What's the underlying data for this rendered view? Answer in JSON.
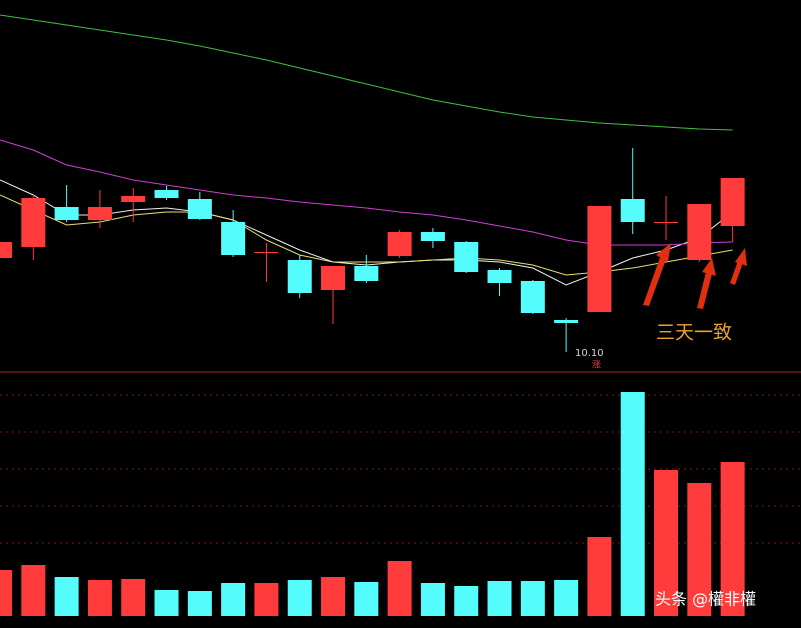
{
  "chart_data": {
    "type": "candlestick",
    "open": [
      11.04,
      11.15,
      11.55,
      11.42,
      11.6,
      11.72,
      11.63,
      11.4,
      11.09,
      11.02,
      10.72,
      10.96,
      11.06,
      11.3,
      11.2,
      10.92,
      10.81,
      10.42,
      10.5,
      11.63,
      11.39,
      11.02,
      11.36
    ],
    "high": [
      11.2,
      11.67,
      11.77,
      11.72,
      11.74,
      11.76,
      11.7,
      11.52,
      11.19,
      11.07,
      10.96,
      11.07,
      11.32,
      11.34,
      11.21,
      10.94,
      10.82,
      10.44,
      11.56,
      12.14,
      11.66,
      11.58,
      11.84
    ],
    "low": [
      11.04,
      11.02,
      11.4,
      11.34,
      11.4,
      11.62,
      11.42,
      11.05,
      10.8,
      10.64,
      10.38,
      10.79,
      11.04,
      11.14,
      10.89,
      10.66,
      10.48,
      10.1,
      10.5,
      11.28,
      11.22,
      11.0,
      11.2
    ],
    "close": [
      11.2,
      11.64,
      11.42,
      11.55,
      11.66,
      11.64,
      11.43,
      11.07,
      11.1,
      10.69,
      10.96,
      10.81,
      11.3,
      11.21,
      10.9,
      10.79,
      10.49,
      10.39,
      11.56,
      11.4,
      11.4,
      11.58,
      11.84
    ],
    "up_color": "#ff3b3b",
    "down_color": "#54fcfc",
    "ylim": [
      9.9,
      13.62
    ],
    "ma": [
      {
        "color": "#f0f0f0",
        "values": [
          11.82,
          11.67,
          11.47,
          11.47,
          11.52,
          11.54,
          11.5,
          11.42,
          11.27,
          11.12,
          11.0,
          10.97,
          11.0,
          11.02,
          11.02,
          11.0,
          10.94,
          10.77,
          10.9,
          11.04,
          11.12,
          11.24,
          11.5
        ]
      },
      {
        "color": "#e8e070",
        "values": [
          11.67,
          11.52,
          11.37,
          11.4,
          11.47,
          11.5,
          11.5,
          11.42,
          11.22,
          11.07,
          11.0,
          11.0,
          11.0,
          11.02,
          11.04,
          11.02,
          10.97,
          10.87,
          10.9,
          10.94,
          11.0,
          11.06,
          11.12
        ]
      },
      {
        "color": "#d040d0",
        "values": [
          12.22,
          12.12,
          11.97,
          11.9,
          11.82,
          11.77,
          11.72,
          11.67,
          11.64,
          11.6,
          11.57,
          11.54,
          11.5,
          11.47,
          11.42,
          11.36,
          11.3,
          11.22,
          11.17,
          11.17,
          11.17,
          11.19,
          11.2
        ]
      },
      {
        "color": "#40c040",
        "values": [
          13.47,
          13.42,
          13.37,
          13.32,
          13.27,
          13.22,
          13.16,
          13.09,
          13.02,
          12.94,
          12.86,
          12.78,
          12.7,
          12.62,
          12.56,
          12.5,
          12.45,
          12.42,
          12.39,
          12.37,
          12.35,
          12.33,
          12.32
        ]
      }
    ],
    "volume": [
      46,
      51,
      39,
      36,
      37,
      26,
      25,
      33,
      33,
      36,
      39,
      34,
      55,
      33,
      30,
      35,
      35,
      36,
      79,
      224,
      146,
      133,
      154
    ],
    "volume_ylim": [
      0,
      240
    ],
    "low_label": "10.10",
    "limit_mark": "涨",
    "annotation": "三天一致",
    "watermark": "头条 @權非權"
  }
}
